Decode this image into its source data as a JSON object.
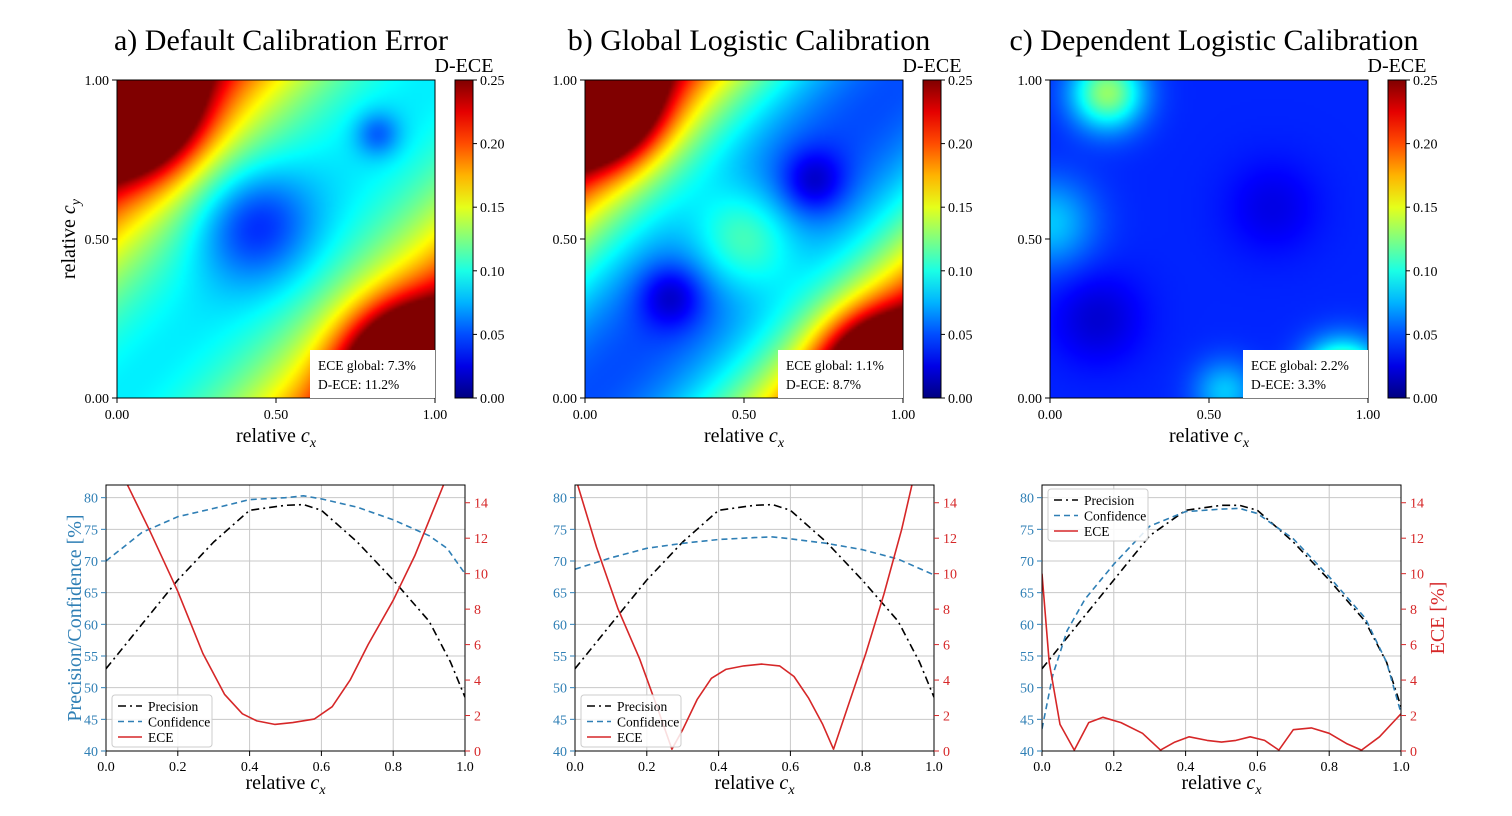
{
  "chart_data": [
    {
      "type": "heatmap",
      "panel": "a",
      "title": "a) Default Calibration Error",
      "xlabel": "relative c_x",
      "ylabel": "relative c_y",
      "xlim": [
        0,
        1
      ],
      "ylim": [
        0,
        1
      ],
      "x_ticks": [
        "0.00",
        "0.50",
        "1.00"
      ],
      "y_ticks": [
        "0.00",
        "0.50",
        "1.00"
      ],
      "colorbar": {
        "label": "D-ECE",
        "range": [
          0,
          0.25
        ],
        "ticks": [
          "0.00",
          "0.05",
          "0.10",
          "0.15",
          "0.20",
          "0.25"
        ],
        "colormap": "jet"
      },
      "annotation": [
        "ECE global: 7.3%",
        "D-ECE: 11.2%"
      ],
      "field": {
        "base": 0.09,
        "diag_coef": 0.28,
        "diag_exp": 2,
        "bumps": [
          {
            "cx": 0.05,
            "cy": 0.92,
            "a": 0.2,
            "s": 0.13
          },
          {
            "cx": 0.92,
            "cy": 0.08,
            "a": 0.2,
            "s": 0.13
          },
          {
            "cx": 0.43,
            "cy": 0.55,
            "a": -0.05,
            "s": 0.13
          },
          {
            "cx": 0.82,
            "cy": 0.83,
            "a": -0.035,
            "s": 0.05
          }
        ]
      }
    },
    {
      "type": "heatmap",
      "panel": "b",
      "title": "b) Global Logistic Calibration",
      "xlabel": "relative c_x",
      "ylabel": "",
      "xlim": [
        0,
        1
      ],
      "ylim": [
        0,
        1
      ],
      "x_ticks": [
        "0.00",
        "0.50",
        "1.00"
      ],
      "y_ticks": [
        "0.00",
        "0.50",
        "1.00"
      ],
      "colorbar": {
        "label": "D-ECE",
        "range": [
          0,
          0.25
        ],
        "ticks": [
          "0.00",
          "0.05",
          "0.10",
          "0.15",
          "0.20",
          "0.25"
        ],
        "colormap": "jet"
      },
      "annotation": [
        "ECE global: 1.1%",
        "D-ECE: 8.7%"
      ],
      "field": {
        "base": 0.05,
        "diag_coef": 0.33,
        "diag_exp": 2,
        "bumps": [
          {
            "cx": 0.05,
            "cy": 0.93,
            "a": 0.18,
            "s": 0.12
          },
          {
            "cx": 0.93,
            "cy": 0.07,
            "a": 0.18,
            "s": 0.12
          },
          {
            "cx": 0.5,
            "cy": 0.5,
            "a": 0.06,
            "s": 0.12
          },
          {
            "cx": 0.27,
            "cy": 0.32,
            "a": -0.035,
            "s": 0.07
          },
          {
            "cx": 0.72,
            "cy": 0.68,
            "a": -0.035,
            "s": 0.07
          }
        ]
      }
    },
    {
      "type": "heatmap",
      "panel": "c",
      "title": "c) Dependent Logistic Calibration",
      "xlabel": "relative c_x",
      "ylabel": "",
      "xlim": [
        0,
        1
      ],
      "ylim": [
        0,
        1
      ],
      "x_ticks": [
        "0.00",
        "0.50",
        "1.00"
      ],
      "y_ticks": [
        "0.00",
        "0.50",
        "1.00"
      ],
      "colorbar": {
        "label": "D-ECE",
        "range": [
          0,
          0.25
        ],
        "ticks": [
          "0.00",
          "0.05",
          "0.10",
          "0.15",
          "0.20",
          "0.25"
        ],
        "colormap": "jet"
      },
      "annotation": [
        "ECE global: 2.2%",
        "D-ECE: 3.3%"
      ],
      "field": {
        "base": 0.04,
        "diag_coef": 0,
        "diag_exp": 2,
        "bumps": [
          {
            "cx": 0.18,
            "cy": 0.96,
            "a": 0.09,
            "s": 0.08
          },
          {
            "cx": 0.0,
            "cy": 0.55,
            "a": 0.04,
            "s": 0.1
          },
          {
            "cx": 0.92,
            "cy": 0.05,
            "a": 0.14,
            "s": 0.08
          },
          {
            "cx": 0.55,
            "cy": 0.02,
            "a": 0.04,
            "s": 0.07
          },
          {
            "cx": 0.15,
            "cy": 0.25,
            "a": -0.02,
            "s": 0.1
          },
          {
            "cx": 0.7,
            "cy": 0.6,
            "a": -0.015,
            "s": 0.1
          }
        ]
      }
    },
    {
      "type": "line",
      "panel": "a",
      "xlabel": "relative c_x",
      "ylabel_left": "Precision/Confidence [%]",
      "ylabel_right": "",
      "xlim": [
        0,
        1
      ],
      "ylim_left": [
        40,
        82
      ],
      "ylim_right": [
        0,
        15
      ],
      "x_ticks": [
        "0.0",
        "0.2",
        "0.4",
        "0.6",
        "0.8",
        "1.0"
      ],
      "y_ticks_left": [
        "40",
        "45",
        "50",
        "55",
        "60",
        "65",
        "70",
        "75",
        "80"
      ],
      "y_ticks_right": [
        "0",
        "2",
        "4",
        "6",
        "8",
        "10",
        "12",
        "14"
      ],
      "grid": true,
      "legend_position": "lower-left",
      "series": [
        {
          "name": "Precision",
          "axis": "left",
          "style": "dashdot",
          "color": "#000000",
          "x": [
            0,
            0.1,
            0.2,
            0.3,
            0.4,
            0.5,
            0.55,
            0.6,
            0.7,
            0.8,
            0.9,
            0.96,
            1.0
          ],
          "y": [
            53,
            60,
            67,
            73,
            78,
            78.8,
            78.9,
            78,
            73,
            67,
            60.5,
            54,
            48.5
          ]
        },
        {
          "name": "Confidence",
          "axis": "left",
          "style": "dashed",
          "color": "#2f7fb5",
          "x": [
            0,
            0.1,
            0.2,
            0.3,
            0.4,
            0.5,
            0.55,
            0.6,
            0.7,
            0.8,
            0.9,
            0.95,
            1.0
          ],
          "y": [
            70,
            74.5,
            77,
            78.3,
            79.7,
            80,
            80.3,
            79.8,
            78.5,
            76.5,
            74,
            72,
            68
          ]
        },
        {
          "name": "ECE",
          "axis": "right",
          "style": "solid",
          "color": "#d62728",
          "x": [
            0,
            0.06,
            0.12,
            0.2,
            0.27,
            0.33,
            0.38,
            0.42,
            0.47,
            0.52,
            0.58,
            0.63,
            0.68,
            0.73,
            0.8,
            0.86,
            0.91,
            0.95
          ],
          "y": [
            17,
            15,
            12.5,
            9,
            5.5,
            3.2,
            2.1,
            1.7,
            1.5,
            1.6,
            1.8,
            2.5,
            4,
            6,
            8.5,
            11,
            13.5,
            15.5
          ]
        }
      ]
    },
    {
      "type": "line",
      "panel": "b",
      "xlabel": "relative c_x",
      "ylabel_left": "",
      "ylabel_right": "",
      "xlim": [
        0,
        1
      ],
      "ylim_left": [
        40,
        82
      ],
      "ylim_right": [
        0,
        15
      ],
      "x_ticks": [
        "0.0",
        "0.2",
        "0.4",
        "0.6",
        "0.8",
        "1.0"
      ],
      "y_ticks_left": [
        "40",
        "45",
        "50",
        "55",
        "60",
        "65",
        "70",
        "75",
        "80"
      ],
      "y_ticks_right": [
        "0",
        "2",
        "4",
        "6",
        "8",
        "10",
        "12",
        "14"
      ],
      "grid": true,
      "legend_position": "lower-left",
      "series": [
        {
          "name": "Precision",
          "axis": "left",
          "style": "dashdot",
          "color": "#000000",
          "x": [
            0,
            0.1,
            0.2,
            0.3,
            0.4,
            0.5,
            0.55,
            0.6,
            0.7,
            0.8,
            0.9,
            0.96,
            1.0
          ],
          "y": [
            53,
            60,
            67,
            73,
            78,
            78.8,
            78.9,
            78,
            73,
            67,
            60.5,
            54,
            48.5
          ]
        },
        {
          "name": "Confidence",
          "axis": "left",
          "style": "dashed",
          "color": "#2f7fb5",
          "x": [
            0,
            0.1,
            0.2,
            0.3,
            0.4,
            0.5,
            0.55,
            0.6,
            0.7,
            0.8,
            0.9,
            1.0
          ],
          "y": [
            68.7,
            70.5,
            72,
            72.8,
            73.4,
            73.7,
            73.8,
            73.5,
            72.8,
            71.8,
            70.3,
            67.8
          ]
        },
        {
          "name": "ECE",
          "axis": "right",
          "style": "solid",
          "color": "#d62728",
          "x": [
            0,
            0.06,
            0.12,
            0.18,
            0.23,
            0.27,
            0.3,
            0.34,
            0.38,
            0.42,
            0.47,
            0.52,
            0.57,
            0.61,
            0.65,
            0.69,
            0.72,
            0.76,
            0.81,
            0.86,
            0.91,
            0.95
          ],
          "y": [
            15.5,
            11.5,
            8,
            5.2,
            2.4,
            0.1,
            1.2,
            2.9,
            4.1,
            4.6,
            4.8,
            4.9,
            4.8,
            4.2,
            3,
            1.5,
            0.1,
            2.5,
            5.5,
            8.8,
            12.5,
            16
          ]
        }
      ]
    },
    {
      "type": "line",
      "panel": "c",
      "xlabel": "relative c_x",
      "ylabel_left": "",
      "ylabel_right": "ECE [%]",
      "xlim": [
        0,
        1
      ],
      "ylim_left": [
        40,
        82
      ],
      "ylim_right": [
        0,
        15
      ],
      "x_ticks": [
        "0.0",
        "0.2",
        "0.4",
        "0.6",
        "0.8",
        "1.0"
      ],
      "y_ticks_left": [
        "40",
        "45",
        "50",
        "55",
        "60",
        "65",
        "70",
        "75",
        "80"
      ],
      "y_ticks_right": [
        "0",
        "2",
        "4",
        "6",
        "8",
        "10",
        "12",
        "14"
      ],
      "grid": true,
      "legend_position": "upper-left",
      "series": [
        {
          "name": "Precision",
          "axis": "left",
          "style": "dashdot",
          "color": "#000000",
          "x": [
            0,
            0.1,
            0.2,
            0.3,
            0.4,
            0.5,
            0.55,
            0.6,
            0.7,
            0.8,
            0.9,
            0.96,
            1.0
          ],
          "y": [
            53,
            60,
            67,
            74,
            78,
            78.8,
            78.8,
            78,
            73,
            67,
            60.5,
            54,
            47
          ]
        },
        {
          "name": "Confidence",
          "axis": "left",
          "style": "dashed",
          "color": "#2f7fb5",
          "x": [
            0,
            0.03,
            0.07,
            0.12,
            0.2,
            0.3,
            0.4,
            0.5,
            0.55,
            0.6,
            0.7,
            0.8,
            0.9,
            0.96,
            1.0
          ],
          "y": [
            43.5,
            52,
            59,
            64,
            69.5,
            75.5,
            77.8,
            78.2,
            78.3,
            77.5,
            73.5,
            67.5,
            61,
            54,
            46
          ]
        },
        {
          "name": "ECE",
          "axis": "right",
          "style": "solid",
          "color": "#d62728",
          "x": [
            0,
            0.02,
            0.05,
            0.09,
            0.13,
            0.17,
            0.22,
            0.28,
            0.33,
            0.37,
            0.41,
            0.46,
            0.5,
            0.54,
            0.58,
            0.62,
            0.66,
            0.7,
            0.75,
            0.8,
            0.85,
            0.89,
            0.94,
            1.0
          ],
          "y": [
            10,
            5,
            1.5,
            0.05,
            1.6,
            1.9,
            1.6,
            1,
            0.05,
            0.5,
            0.8,
            0.6,
            0.5,
            0.6,
            0.8,
            0.6,
            0.05,
            1.2,
            1.3,
            1,
            0.4,
            0.05,
            0.8,
            2.1
          ]
        }
      ]
    }
  ]
}
